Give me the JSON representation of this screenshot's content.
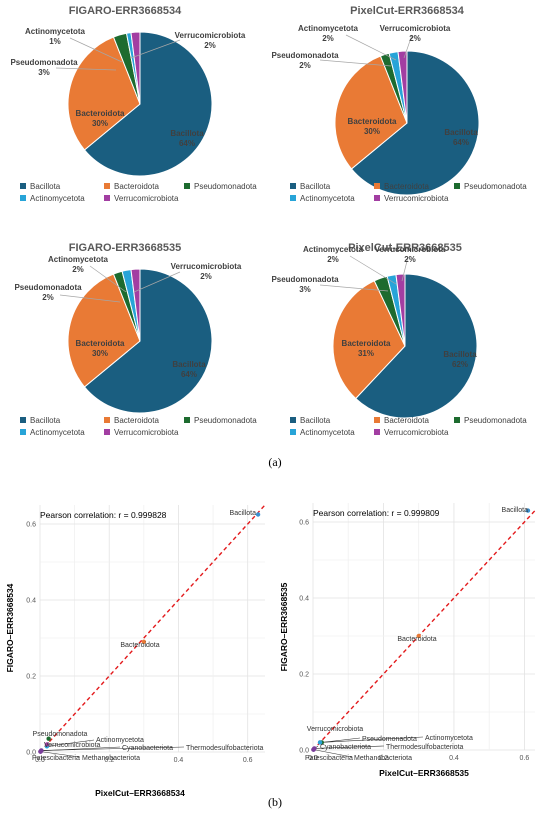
{
  "subfig_a": "(a)",
  "subfig_b": "(b)",
  "legend": {
    "items": [
      "Bacillota",
      "Bacteroidota",
      "Pseudomonadota",
      "Actinomycetota",
      "Verrucomicrobiota"
    ]
  },
  "colors": {
    "Bacillota": "#1a5e80",
    "Bacteroidota": "#e97a35",
    "Pseudomonadota": "#1d6b2f",
    "Actinomycetota": "#27a4d8",
    "Verrucomicrobiota": "#a23ea2"
  },
  "chart_data": [
    {
      "type": "pie",
      "title": "FIGARO-ERR3668534",
      "categories": [
        "Bacillota",
        "Bacteroidota",
        "Pseudomonadota",
        "Actinomycetota",
        "Verrucomicrobiota"
      ],
      "values": [
        64,
        30,
        3,
        1,
        2
      ],
      "labels": [
        "64%",
        "30%",
        "3%",
        "1%",
        "2%"
      ],
      "legend": "bottom"
    },
    {
      "type": "pie",
      "title": "PixelCut-ERR3668534",
      "categories": [
        "Bacillota",
        "Bacteroidota",
        "Pseudomonadota",
        "Actinomycetota",
        "Verrucomicrobiota"
      ],
      "values": [
        64,
        30,
        2,
        2,
        2
      ],
      "labels": [
        "64%",
        "30%",
        "2%",
        "2%",
        "2%"
      ],
      "legend": "bottom"
    },
    {
      "type": "pie",
      "title": "FIGARO-ERR3668535",
      "categories": [
        "Bacillota",
        "Bacteroidota",
        "Pseudomonadota",
        "Actinomycetota",
        "Verrucomicrobiota"
      ],
      "values": [
        64,
        30,
        2,
        2,
        2
      ],
      "labels": [
        "64%",
        "30%",
        "2%",
        "2%",
        "2%"
      ],
      "legend": "bottom"
    },
    {
      "type": "pie",
      "title": "PixelCut-ERR3668535",
      "categories": [
        "Bacillota",
        "Bacteroidota",
        "Pseudomonadota",
        "Actinomycetota",
        "Verrucomicrobiota"
      ],
      "values": [
        62,
        31,
        3,
        2,
        2
      ],
      "labels": [
        "62%",
        "31%",
        "3%",
        "2%",
        "2%"
      ],
      "legend": "bottom"
    },
    {
      "type": "scatter",
      "annotation": "Pearson correlation: r = 0.999828",
      "xlabel": "PixelCut–ERR3668534",
      "ylabel": "FIGARO–ERR3668534",
      "xlim": [
        0,
        0.65
      ],
      "ylim": [
        0,
        0.65
      ],
      "xticks": [
        "0.0",
        "0.2",
        "0.4",
        "0.6"
      ],
      "yticks": [
        "0.0",
        "0.2",
        "0.4",
        "0.6"
      ],
      "grid": true,
      "points": [
        {
          "name": "Bacillota",
          "x": 0.63,
          "y": 0.625
        },
        {
          "name": "Bacteroidota",
          "x": 0.3,
          "y": 0.29
        },
        {
          "name": "Pseudomonadota",
          "x": 0.025,
          "y": 0.035
        },
        {
          "name": "Actinomycetota",
          "x": 0.02,
          "y": 0.015
        },
        {
          "name": "Verrucomicrobiota",
          "x": 0.02,
          "y": 0.02
        },
        {
          "name": "Cyanobacteriota",
          "x": 0.003,
          "y": 0.003
        },
        {
          "name": "Thermodesulfobacteriota",
          "x": 0.004,
          "y": 0.004
        },
        {
          "name": "Patescibacteria",
          "x": 0.001,
          "y": 0.001
        },
        {
          "name": "Methanobacteriota",
          "x": 0.002,
          "y": 0.001
        }
      ]
    },
    {
      "type": "scatter",
      "annotation": "Pearson correlation: r = 0.999809",
      "xlabel": "PixelCut–ERR3668535",
      "ylabel": "FIGARO–ERR3668535",
      "xlim": [
        0,
        0.63
      ],
      "ylim": [
        0,
        0.65
      ],
      "xticks": [
        "0.0",
        "0.2",
        "0.4",
        "0.6"
      ],
      "yticks": [
        "0.0",
        "0.2",
        "0.4",
        "0.6"
      ],
      "grid": true,
      "points": [
        {
          "name": "Bacillota",
          "x": 0.61,
          "y": 0.63
        },
        {
          "name": "Bacteroidota",
          "x": 0.3,
          "y": 0.3
        },
        {
          "name": "Verrucomicrobiota",
          "x": 0.02,
          "y": 0.02
        },
        {
          "name": "Pseudomonadota",
          "x": 0.025,
          "y": 0.02
        },
        {
          "name": "Actinomycetota",
          "x": 0.02,
          "y": 0.02
        },
        {
          "name": "Cyanobacteriota",
          "x": 0.003,
          "y": 0.003
        },
        {
          "name": "Thermodesulfobacteriota",
          "x": 0.004,
          "y": 0.004
        },
        {
          "name": "Patescibacteria",
          "x": 0.001,
          "y": 0.001
        },
        {
          "name": "Methanobacteriota",
          "x": 0.002,
          "y": 0.001
        }
      ]
    }
  ]
}
